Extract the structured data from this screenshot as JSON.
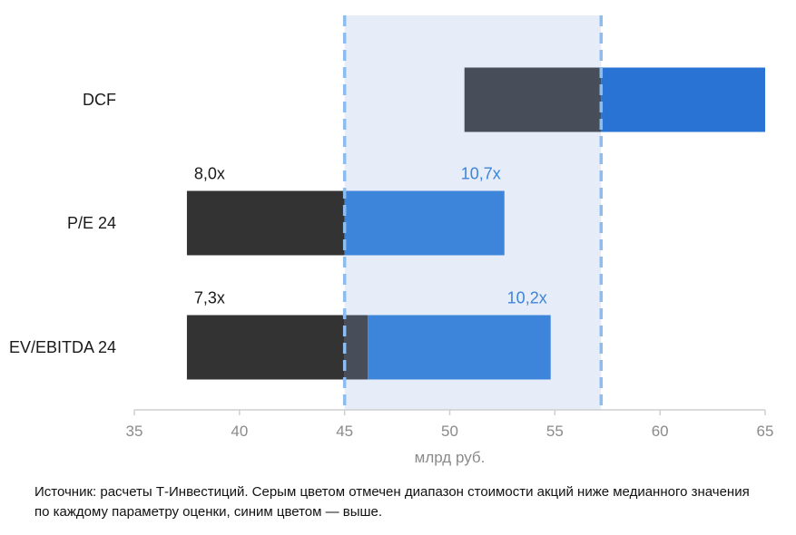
{
  "chart_data": {
    "type": "bar",
    "orientation": "horizontal",
    "subtype": "floating-range",
    "categories": [
      "DCF",
      "P/E 24",
      "EV/EBITDA 24"
    ],
    "ranges": [
      {
        "category": "DCF",
        "low": 50.7,
        "median": 57.2,
        "high": 65.0,
        "low_label": "",
        "high_label": ""
      },
      {
        "category": "P/E 24",
        "low": 37.5,
        "median": 45.0,
        "high": 52.6,
        "low_label": "8,0x",
        "high_label": "10,7x"
      },
      {
        "category": "EV/EBITDA 24",
        "low": 37.5,
        "median": 46.1,
        "high": 54.8,
        "low_label": "7,3x",
        "high_label": "10,2x"
      }
    ],
    "series": [
      {
        "name": "",
        "segment": "below_median",
        "color": "#333333"
      },
      {
        "name": "",
        "segment": "above_median",
        "color": "#3d85da"
      }
    ],
    "shaded_band": {
      "from": 45.0,
      "to": 57.2,
      "color": "#e6edf9"
    },
    "reference_lines": [
      45.0,
      57.2
    ],
    "xlim": [
      35,
      65
    ],
    "xticks": [
      35,
      40,
      45,
      50,
      55,
      60,
      65
    ],
    "xlabel": "млрд руб.",
    "title": "",
    "grid": false,
    "colors": {
      "dark": "#333333",
      "dark_inside_band": "#474e59",
      "blue": "#3d85da",
      "dcf_blue": "#2873d3",
      "ref_line": "#8dbcee",
      "label_blue": "#3d85da",
      "label_dark": "#1a1a1a"
    }
  },
  "footnote": "Источник: расчеты Т-Инвестиций. Серым цветом отмечен диапазон стоимости акций ниже медианного значения по каждому параметру оценки, синим цветом — выше."
}
